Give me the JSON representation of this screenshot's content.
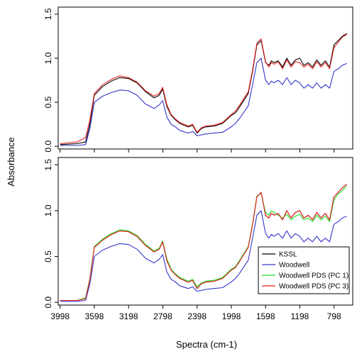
{
  "chart_data": {
    "type": "line",
    "xlabel": "Spectra (cm-1)",
    "ylabel": "Absorbance",
    "x_reversed": true,
    "xlim": [
      4020,
      580
    ],
    "x_ticks": [
      3998,
      3598,
      3198,
      2798,
      2398,
      1998,
      1598,
      1198,
      798
    ],
    "y_ticks": [
      0.0,
      0.5,
      1.0,
      1.5
    ],
    "ylim": [
      -0.03,
      1.58
    ],
    "grid": false,
    "panels": [
      {
        "legend": null,
        "series": [
          {
            "name": "KSSL",
            "color": "#000000",
            "x": [
              3998,
              3800,
              3700,
              3650,
              3598,
              3500,
              3400,
              3300,
              3200,
              3100,
              3000,
              2900,
              2840,
              2800,
              2750,
              2700,
              2650,
              2600,
              2500,
              2450,
              2398,
              2350,
              2300,
              2200,
              2100,
              2000,
              1950,
              1900,
              1800,
              1750,
              1700,
              1650,
              1598,
              1560,
              1530,
              1500,
              1450,
              1400,
              1350,
              1300,
              1250,
              1200,
              1150,
              1100,
              1050,
              1000,
              950,
              900,
              850,
              800,
              750,
              700,
              650
            ],
            "y": [
              0.02,
              0.03,
              0.05,
              0.25,
              0.58,
              0.68,
              0.74,
              0.78,
              0.77,
              0.72,
              0.62,
              0.55,
              0.58,
              0.65,
              0.45,
              0.35,
              0.3,
              0.26,
              0.22,
              0.24,
              0.15,
              0.2,
              0.22,
              0.23,
              0.26,
              0.35,
              0.38,
              0.45,
              0.6,
              0.85,
              1.15,
              1.2,
              0.95,
              0.92,
              0.97,
              0.95,
              0.97,
              0.9,
              1.0,
              0.92,
              0.98,
              1.0,
              0.92,
              0.95,
              0.9,
              0.98,
              0.92,
              0.97,
              0.9,
              1.15,
              1.2,
              1.25,
              1.28
            ]
          },
          {
            "name": "Woodwell",
            "color": "#3333cc",
            "x": [
              3998,
              3800,
              3700,
              3650,
              3598,
              3500,
              3400,
              3300,
              3200,
              3100,
              3000,
              2900,
              2840,
              2800,
              2750,
              2700,
              2650,
              2600,
              2500,
              2450,
              2398,
              2350,
              2300,
              2200,
              2100,
              2000,
              1950,
              1900,
              1800,
              1750,
              1700,
              1650,
              1598,
              1560,
              1530,
              1500,
              1450,
              1400,
              1350,
              1300,
              1250,
              1200,
              1150,
              1100,
              1050,
              1000,
              950,
              900,
              850,
              800,
              750,
              700,
              650
            ],
            "y": [
              0.01,
              0.01,
              0.02,
              0.2,
              0.5,
              0.57,
              0.61,
              0.64,
              0.63,
              0.58,
              0.48,
              0.43,
              0.47,
              0.52,
              0.33,
              0.25,
              0.22,
              0.18,
              0.15,
              0.17,
              0.12,
              0.13,
              0.14,
              0.15,
              0.16,
              0.22,
              0.26,
              0.32,
              0.46,
              0.7,
              0.95,
              1.0,
              0.75,
              0.7,
              0.74,
              0.72,
              0.75,
              0.7,
              0.78,
              0.7,
              0.75,
              0.72,
              0.66,
              0.7,
              0.66,
              0.72,
              0.66,
              0.7,
              0.66,
              0.85,
              0.88,
              0.92,
              0.94
            ]
          },
          {
            "name": "Woodwell PDS (PC 3)",
            "color": "#ee2222",
            "x": [
              3998,
              3800,
              3700,
              3650,
              3598,
              3500,
              3400,
              3300,
              3200,
              3100,
              3000,
              2900,
              2840,
              2800,
              2750,
              2700,
              2650,
              2600,
              2500,
              2450,
              2398,
              2350,
              2300,
              2200,
              2100,
              2000,
              1950,
              1900,
              1800,
              1750,
              1700,
              1650,
              1598,
              1560,
              1530,
              1500,
              1450,
              1400,
              1350,
              1300,
              1250,
              1200,
              1150,
              1100,
              1050,
              1000,
              950,
              900,
              850,
              800,
              750,
              700,
              650
            ],
            "y": [
              0.03,
              0.05,
              0.1,
              0.3,
              0.6,
              0.7,
              0.76,
              0.8,
              0.78,
              0.73,
              0.63,
              0.57,
              0.6,
              0.67,
              0.47,
              0.36,
              0.31,
              0.27,
              0.23,
              0.25,
              0.16,
              0.21,
              0.23,
              0.24,
              0.27,
              0.36,
              0.4,
              0.47,
              0.62,
              0.87,
              1.17,
              1.22,
              0.96,
              0.9,
              0.95,
              0.93,
              0.96,
              0.88,
              0.98,
              0.9,
              0.96,
              0.95,
              0.9,
              0.93,
              0.88,
              0.96,
              0.9,
              0.95,
              0.88,
              1.12,
              1.18,
              1.24,
              1.27
            ]
          }
        ]
      },
      {
        "legend": "bottom-right",
        "series": [
          {
            "name": "KSSL",
            "color": "#000000",
            "x": [
              3998,
              3800,
              3700,
              3650,
              3598,
              3500,
              3400,
              3300,
              3200,
              3100,
              3000,
              2900,
              2840,
              2800,
              2750,
              2700,
              2650,
              2600,
              2500,
              2450,
              2398,
              2350,
              2300,
              2200,
              2100,
              2000,
              1950,
              1900,
              1800,
              1750,
              1700,
              1650,
              1598,
              1560,
              1530,
              1500,
              1450,
              1400,
              1350,
              1300,
              1250,
              1200,
              1150,
              1100,
              1050,
              1000,
              950,
              900,
              850,
              800,
              750,
              700,
              650
            ],
            "y": [
              0.02,
              0.02,
              0.04,
              0.25,
              0.6,
              0.68,
              0.74,
              0.78,
              0.77,
              0.72,
              0.62,
              0.55,
              0.58,
              0.66,
              0.45,
              0.35,
              0.3,
              0.26,
              0.22,
              0.24,
              0.15,
              0.2,
              0.22,
              0.23,
              0.26,
              0.35,
              0.38,
              0.45,
              0.6,
              0.85,
              1.15,
              1.2,
              0.95,
              0.92,
              0.97,
              0.95,
              0.97,
              0.9,
              1.0,
              0.92,
              0.98,
              1.0,
              0.92,
              0.95,
              0.9,
              0.98,
              0.92,
              0.97,
              0.9,
              1.15,
              1.2,
              1.25,
              1.29
            ]
          },
          {
            "name": "Woodwell",
            "color": "#3333cc",
            "x": [
              3998,
              3800,
              3700,
              3650,
              3598,
              3500,
              3400,
              3300,
              3200,
              3100,
              3000,
              2900,
              2840,
              2800,
              2750,
              2700,
              2650,
              2600,
              2500,
              2450,
              2398,
              2350,
              2300,
              2200,
              2100,
              2000,
              1950,
              1900,
              1800,
              1750,
              1700,
              1650,
              1598,
              1560,
              1530,
              1500,
              1450,
              1400,
              1350,
              1300,
              1250,
              1200,
              1150,
              1100,
              1050,
              1000,
              950,
              900,
              850,
              800,
              750,
              700,
              650
            ],
            "y": [
              0.01,
              0.01,
              0.02,
              0.2,
              0.5,
              0.57,
              0.61,
              0.64,
              0.63,
              0.58,
              0.48,
              0.43,
              0.47,
              0.52,
              0.33,
              0.25,
              0.22,
              0.18,
              0.15,
              0.17,
              0.12,
              0.13,
              0.14,
              0.15,
              0.16,
              0.22,
              0.26,
              0.32,
              0.46,
              0.7,
              0.95,
              1.0,
              0.75,
              0.7,
              0.74,
              0.72,
              0.75,
              0.7,
              0.78,
              0.7,
              0.75,
              0.72,
              0.66,
              0.7,
              0.66,
              0.72,
              0.66,
              0.7,
              0.66,
              0.85,
              0.88,
              0.92,
              0.94
            ]
          },
          {
            "name": "Woodwell PDS (PC 1)",
            "color": "#22dd22",
            "x": [
              3998,
              3800,
              3700,
              3650,
              3598,
              3500,
              3400,
              3300,
              3200,
              3100,
              3000,
              2900,
              2840,
              2800,
              2750,
              2700,
              2650,
              2600,
              2500,
              2450,
              2398,
              2350,
              2300,
              2200,
              2100,
              2000,
              1950,
              1900,
              1800,
              1750,
              1700,
              1650,
              1598,
              1560,
              1530,
              1500,
              1450,
              1400,
              1350,
              1300,
              1250,
              1200,
              1150,
              1100,
              1050,
              1000,
              950,
              900,
              850,
              800,
              750,
              700,
              650
            ],
            "y": [
              0.02,
              0.02,
              0.05,
              0.26,
              0.61,
              0.69,
              0.75,
              0.79,
              0.78,
              0.73,
              0.63,
              0.56,
              0.59,
              0.67,
              0.47,
              0.36,
              0.31,
              0.27,
              0.23,
              0.25,
              0.17,
              0.21,
              0.23,
              0.24,
              0.27,
              0.36,
              0.39,
              0.46,
              0.61,
              0.86,
              1.16,
              1.19,
              0.98,
              0.95,
              1.0,
              0.98,
              0.95,
              0.92,
              0.96,
              0.9,
              0.94,
              0.96,
              0.9,
              0.92,
              0.88,
              0.95,
              0.9,
              0.94,
              0.88,
              1.12,
              1.18,
              1.22,
              1.27
            ]
          },
          {
            "name": "Woodwell PDS (PC 3)",
            "color": "#ee2222",
            "x": [
              3998,
              3800,
              3700,
              3650,
              3598,
              3500,
              3400,
              3300,
              3200,
              3100,
              3000,
              2900,
              2840,
              2800,
              2750,
              2700,
              2650,
              2600,
              2500,
              2450,
              2398,
              2350,
              2300,
              2200,
              2100,
              2000,
              1950,
              1900,
              1800,
              1750,
              1700,
              1650,
              1598,
              1560,
              1530,
              1500,
              1450,
              1400,
              1350,
              1300,
              1250,
              1200,
              1150,
              1100,
              1050,
              1000,
              950,
              900,
              850,
              800,
              750,
              700,
              650
            ],
            "y": [
              0.02,
              0.02,
              0.04,
              0.25,
              0.6,
              0.68,
              0.74,
              0.78,
              0.77,
              0.72,
              0.62,
              0.55,
              0.58,
              0.66,
              0.45,
              0.35,
              0.3,
              0.26,
              0.22,
              0.24,
              0.15,
              0.2,
              0.22,
              0.23,
              0.26,
              0.35,
              0.38,
              0.45,
              0.6,
              0.85,
              1.15,
              1.2,
              0.95,
              0.92,
              0.97,
              0.95,
              0.97,
              0.9,
              1.0,
              0.92,
              0.98,
              1.0,
              0.92,
              0.95,
              0.9,
              0.98,
              0.92,
              0.97,
              0.9,
              1.15,
              1.2,
              1.25,
              1.29
            ]
          }
        ],
        "legend_order": [
          "KSSL",
          "Woodwell",
          "Woodwell PDS (PC 1)",
          "Woodwell PDS (PC 3)"
        ]
      }
    ]
  }
}
